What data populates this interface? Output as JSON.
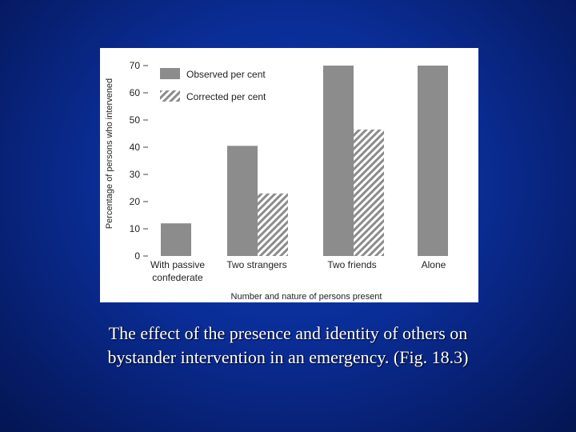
{
  "caption": {
    "line1": "The effect of the presence and identity of others on",
    "line2": "bystander intervention in an emergency. (Fig. 18.3)"
  },
  "chart_data": {
    "type": "bar",
    "categories": [
      [
        "With passive",
        "confederate"
      ],
      [
        "Two strangers"
      ],
      [
        "Two friends"
      ],
      [
        "Alone"
      ]
    ],
    "series": [
      {
        "name": "Observed per cent",
        "values": [
          12,
          40.5,
          70,
          70
        ],
        "color": "#8c8c8c",
        "pattern": "solid"
      },
      {
        "name": "Corrected per cent",
        "values": [
          null,
          23,
          46.5,
          null
        ],
        "color": "#8c8c8c",
        "pattern": "hatched"
      }
    ],
    "xlabel": "Number and nature of persons present",
    "ylabel": "Percentage of persons who intervened",
    "ylim": [
      0,
      70
    ],
    "yticks": [
      0,
      10,
      20,
      30,
      40,
      50,
      60,
      70
    ],
    "grid": false,
    "legend_position": "top-left"
  }
}
